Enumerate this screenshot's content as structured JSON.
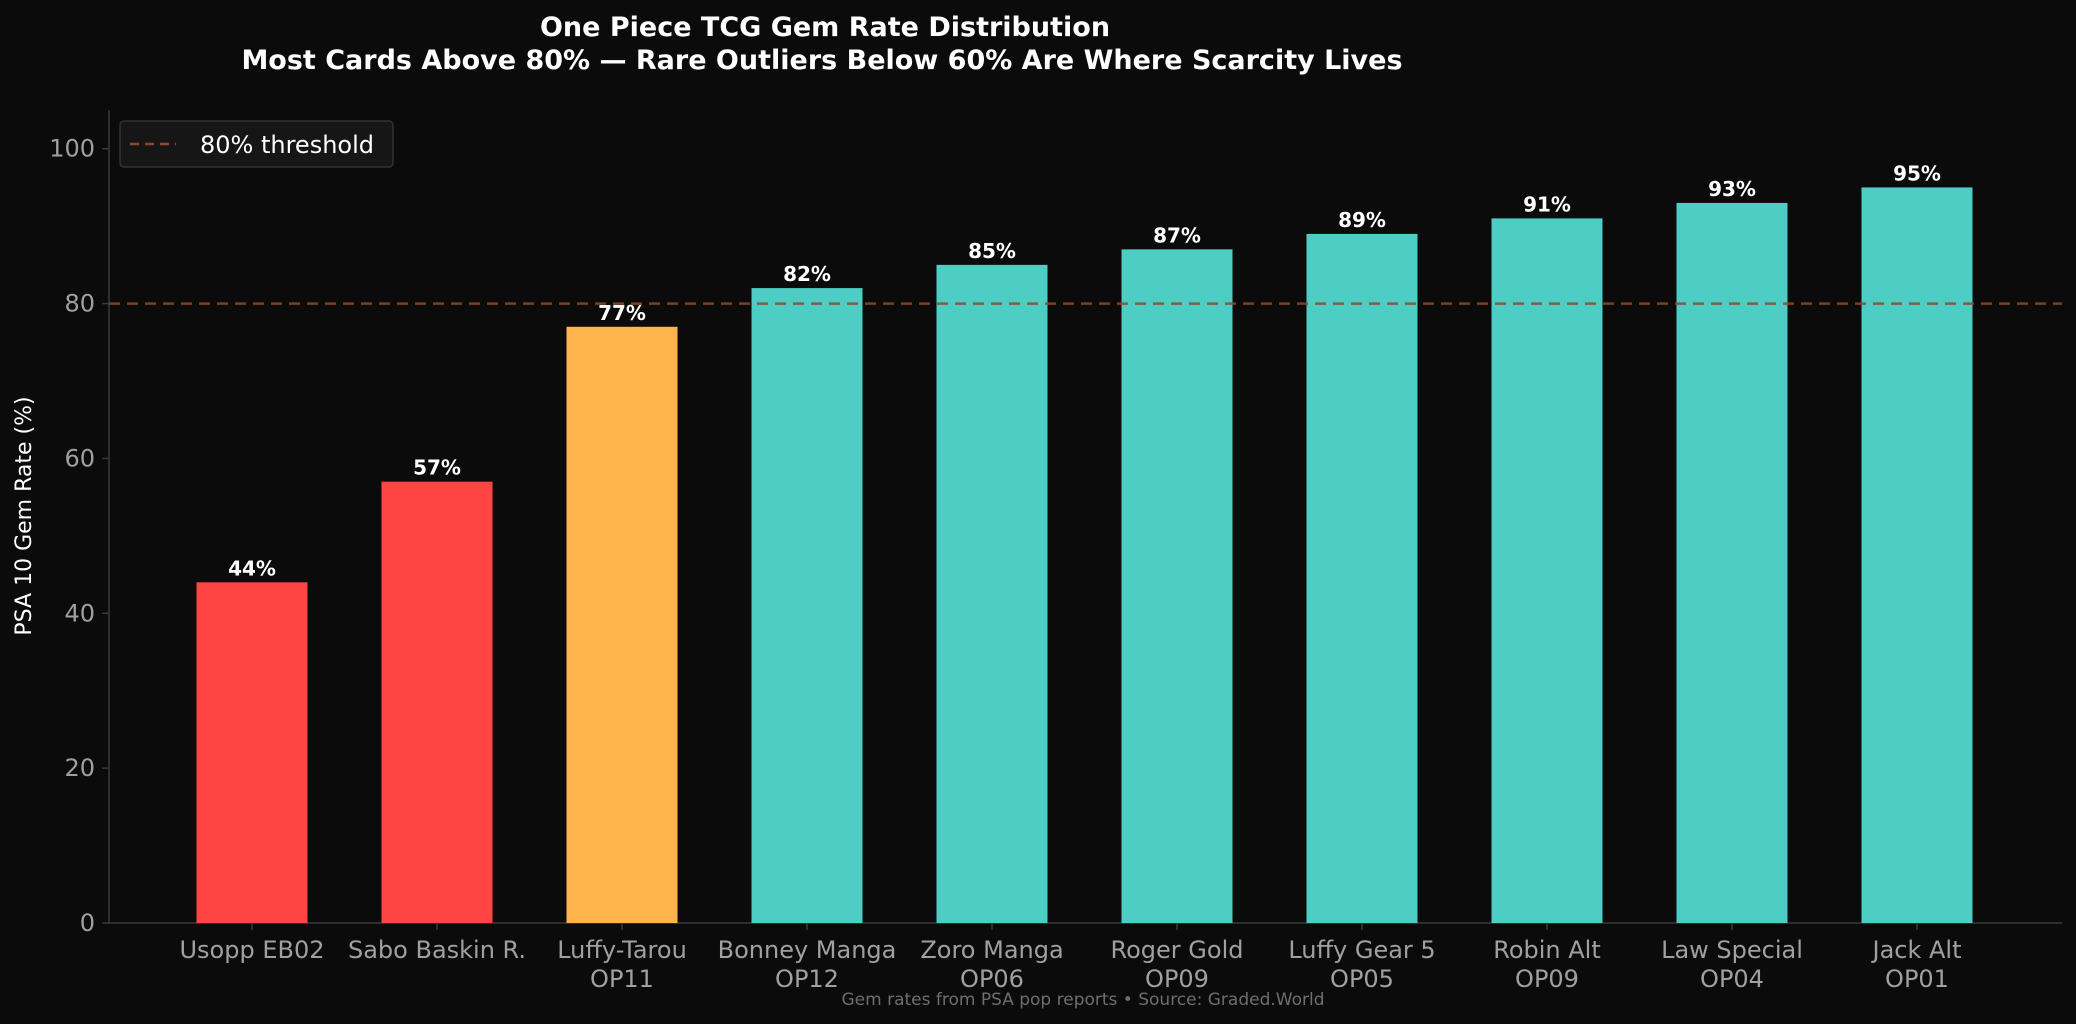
{
  "chart_data": {
    "type": "bar",
    "title": "One Piece TCG Gem Rate Distribution",
    "subtitle": "Most Cards Above 80% — Rare Outliers Below 60% Are Where Scarcity Lives",
    "xlabel": "",
    "ylabel": "PSA 10 Gem Rate (%)",
    "ylim": [
      0,
      105
    ],
    "yticks": [
      "0",
      "20",
      "40",
      "60",
      "80",
      "100"
    ],
    "categories": [
      [
        "Usopp EB02"
      ],
      [
        "Sabo Baskin R."
      ],
      [
        "Luffy-Tarou",
        "OP11"
      ],
      [
        "Bonney Manga",
        "OP12"
      ],
      [
        "Zoro Manga",
        "OP06"
      ],
      [
        "Roger Gold",
        "OP09"
      ],
      [
        "Luffy Gear 5",
        "OP05"
      ],
      [
        "Robin Alt",
        "OP09"
      ],
      [
        "Law Special",
        "OP04"
      ],
      [
        "Jack Alt",
        "OP01"
      ]
    ],
    "values": [
      44,
      57,
      77,
      82,
      85,
      87,
      89,
      91,
      93,
      95
    ],
    "value_labels": [
      "44%",
      "57%",
      "77%",
      "82%",
      "85%",
      "87%",
      "89%",
      "91%",
      "93%",
      "95%"
    ],
    "bar_colors": [
      "#ff4444",
      "#ff4444",
      "#ffb54c",
      "#4ecdc4",
      "#4ecdc4",
      "#4ecdc4",
      "#4ecdc4",
      "#4ecdc4",
      "#4ecdc4",
      "#4ecdc4"
    ],
    "threshold": {
      "value": 80,
      "label": "80% threshold",
      "color": "#8b4a2b",
      "style": "dashed"
    },
    "legend_placement": "top-left",
    "grid": false,
    "footer": "Gem rates from PSA pop reports  •  Source: Graded.World"
  },
  "colors": {
    "background": "#0b0b0b",
    "axis": "#3a3a3a",
    "tick_text": "#a0a0a0",
    "text": "#ffffff"
  }
}
